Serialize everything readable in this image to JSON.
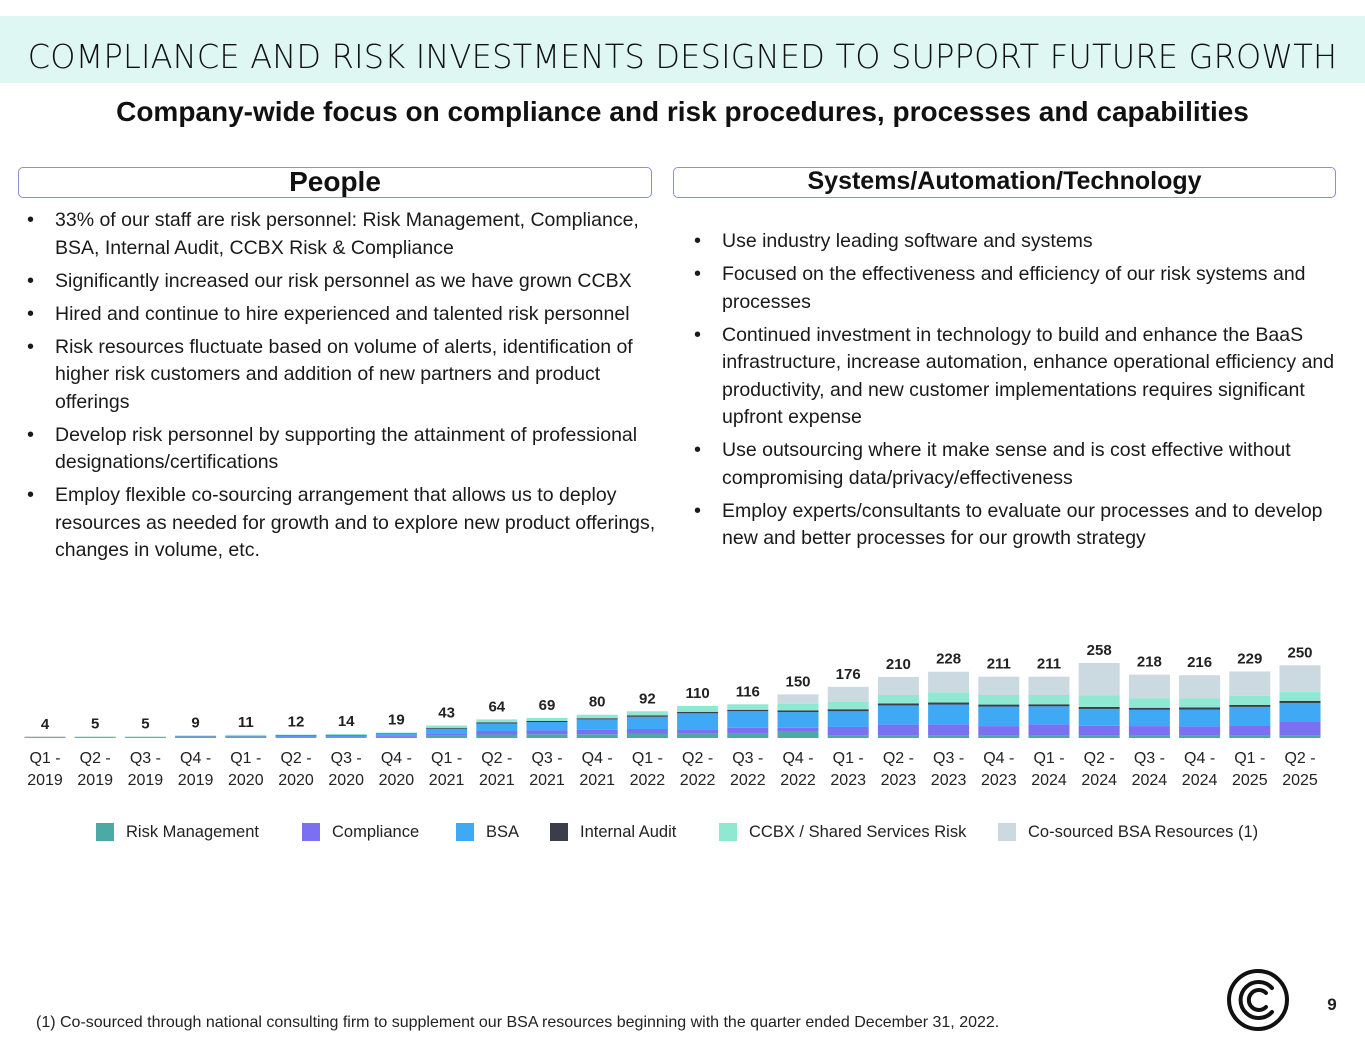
{
  "page": {
    "title": "COMPLIANCE AND RISK INVESTMENTS DESIGNED TO SUPPORT FUTURE GROWTH",
    "subtitle": "Company-wide focus on compliance and risk procedures, processes and capabilities",
    "footnote": "(1) Co-sourced through national consulting firm to supplement our BSA resources beginning with the quarter ended December 31, 2022.",
    "page_number": "9",
    "logo_icon": "company-logo-icon"
  },
  "people": {
    "header": "People",
    "bullets": [
      "33% of our staff are risk personnel: Risk Management, Compliance, BSA, Internal Audit, CCBX Risk & Compliance",
      "Significantly increased our risk personnel as we have grown CCBX",
      "Hired and continue to hire experienced and talented risk personnel",
      "Risk resources fluctuate based on volume of alerts, identification of higher risk customers and addition of new partners and product offerings",
      "Develop risk personnel by supporting the attainment of professional designations/certifications",
      "Employ flexible co-sourcing arrangement that allows us to deploy resources as needed for growth and to explore new product offerings, changes in volume, etc."
    ]
  },
  "systems": {
    "header": "Systems/Automation/Technology",
    "bullets": [
      "Use industry leading software and systems",
      "Focused on the effectiveness and efficiency of our risk systems and processes",
      "Continued investment in technology to build and enhance the BaaS infrastructure, increase automation, enhance operational efficiency and productivity, and new customer implementations requires significant upfront expense",
      "Use outsourcing where it make sense and is cost effective without compromising data/privacy/effectiveness",
      "Employ experts/consultants to evaluate our processes and to develop new and better processes for our growth strategy"
    ]
  },
  "chart_data": {
    "type": "bar",
    "stacked": true,
    "title": "",
    "xlabel": "",
    "ylabel": "",
    "ylim": [
      0,
      258
    ],
    "grid": false,
    "legend_position": "bottom",
    "categories": [
      "Q1 - 2019",
      "Q2 - 2019",
      "Q3 - 2019",
      "Q4 - 2019",
      "Q1 - 2020",
      "Q2 - 2020",
      "Q3 - 2020",
      "Q4 - 2020",
      "Q1 - 2021",
      "Q2 - 2021",
      "Q3 - 2021",
      "Q4 - 2021",
      "Q1 - 2022",
      "Q2 - 2022",
      "Q3 - 2022",
      "Q4 - 2022",
      "Q1 - 2023",
      "Q2 - 2023",
      "Q3 - 2023",
      "Q4 - 2023",
      "Q1 - 2024",
      "Q2 - 2024",
      "Q3 - 2024",
      "Q4 - 2024",
      "Q1 - 2025",
      "Q2 - 2025"
    ],
    "totals": [
      4,
      5,
      5,
      9,
      11,
      12,
      14,
      19,
      43,
      64,
      69,
      80,
      92,
      110,
      116,
      150,
      176,
      210,
      228,
      211,
      211,
      258,
      218,
      216,
      229,
      250
    ],
    "series": [
      {
        "name": "Risk Management",
        "color": "#4ba9a6",
        "values": [
          1,
          1,
          1,
          2,
          2,
          3,
          3,
          4,
          8,
          12,
          13,
          13,
          14,
          15,
          15,
          24,
          10,
          10,
          10,
          9,
          9,
          9,
          9,
          9,
          9,
          10
        ]
      },
      {
        "name": "Compliance",
        "color": "#7b6ff2",
        "values": [
          1,
          1,
          1,
          2,
          2,
          2,
          2,
          3,
          8,
          12,
          13,
          15,
          17,
          15,
          20,
          11,
          28,
          36,
          37,
          32,
          38,
          33,
          32,
          31,
          35,
          45
        ]
      },
      {
        "name": "BSA",
        "color": "#3fa9f5",
        "values": [
          1,
          1,
          1,
          2,
          2,
          3,
          3,
          7,
          16,
          26,
          29,
          36,
          42,
          55,
          57,
          54,
          54,
          66,
          68,
          67,
          62,
          58,
          56,
          58,
          63,
          65
        ]
      },
      {
        "name": "Internal Audit",
        "color": "#3b3e4a",
        "values": [
          1,
          1,
          1,
          1,
          1,
          2,
          2,
          2,
          3,
          4,
          4,
          4,
          5,
          5,
          5,
          6,
          7,
          7,
          7,
          7,
          7,
          7,
          7,
          7,
          7,
          8
        ]
      },
      {
        "name": "CCBX / Shared Services Risk",
        "color": "#8ee8d2",
        "values": [
          0,
          1,
          1,
          2,
          4,
          2,
          4,
          3,
          8,
          10,
          10,
          12,
          14,
          20,
          19,
          23,
          25,
          29,
          35,
          33,
          32,
          39,
          33,
          31,
          31,
          30
        ]
      },
      {
        "name": "Co-sourced BSA Resources (1)",
        "color": "#cbd9e0",
        "values": [
          0,
          0,
          0,
          0,
          0,
          0,
          0,
          0,
          0,
          0,
          0,
          0,
          0,
          0,
          0,
          32,
          52,
          62,
          71,
          63,
          63,
          112,
          81,
          80,
          84,
          92
        ]
      }
    ]
  }
}
